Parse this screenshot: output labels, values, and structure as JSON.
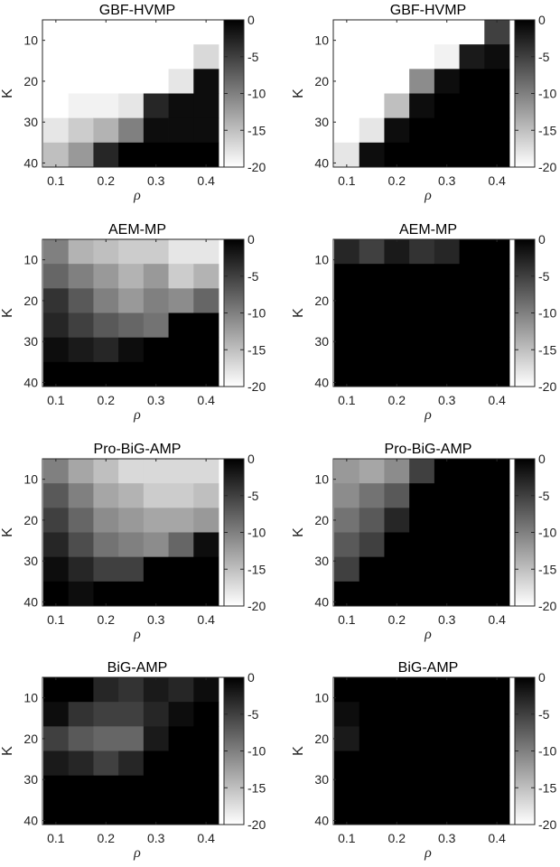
{
  "chart_data": [
    {
      "type": "heatmap",
      "title": "GBF-HVMP",
      "xlabel": "ρ",
      "ylabel": "K",
      "x": [
        0.1,
        0.15,
        0.2,
        0.25,
        0.3,
        0.35,
        0.4
      ],
      "y": [
        8,
        14,
        20,
        26,
        32,
        38
      ],
      "xticks": [
        "0.1",
        "0.2",
        "0.3",
        "0.4"
      ],
      "yticks": [
        "10",
        "20",
        "30",
        "40"
      ],
      "colorbar": {
        "ticks": [
          "0",
          "-5",
          "-10",
          "-15",
          "-20"
        ],
        "range": [
          -20,
          0
        ]
      },
      "z": [
        [
          -20,
          -20,
          -20,
          -20,
          -20,
          -20,
          -20
        ],
        [
          -20,
          -20,
          -20,
          -20,
          -20,
          -20,
          -17
        ],
        [
          -20,
          -20,
          -20,
          -20,
          -20,
          -18,
          -1
        ],
        [
          -20,
          -19,
          -19,
          -18,
          -3,
          -1,
          -1
        ],
        [
          -18,
          -16,
          -14,
          -10,
          -1,
          -1,
          -1
        ],
        [
          -15,
          -12,
          -3,
          0,
          0,
          0,
          0
        ]
      ]
    },
    {
      "type": "heatmap",
      "title": "GBF-HVMP",
      "xlabel": "ρ",
      "ylabel": "K",
      "x": [
        0.1,
        0.15,
        0.2,
        0.25,
        0.3,
        0.35,
        0.4
      ],
      "y": [
        8,
        14,
        20,
        26,
        32,
        38
      ],
      "xticks": [
        "0.1",
        "0.2",
        "0.3",
        "0.4"
      ],
      "yticks": [
        "10",
        "20",
        "30",
        "40"
      ],
      "colorbar": {
        "ticks": [
          "0",
          "-5",
          "-10",
          "-15",
          "-20"
        ],
        "range": [
          -20,
          0
        ]
      },
      "z": [
        [
          -20,
          -20,
          -20,
          -20,
          -20,
          -20,
          -5
        ],
        [
          -20,
          -20,
          -20,
          -20,
          -19,
          -2,
          -1
        ],
        [
          -20,
          -20,
          -20,
          -11,
          -1,
          0,
          0
        ],
        [
          -20,
          -20,
          -15,
          -1,
          0,
          0,
          0
        ],
        [
          -20,
          -18,
          -1,
          0,
          0,
          0,
          0
        ],
        [
          -18,
          -1,
          0,
          0,
          0,
          0,
          0
        ]
      ]
    },
    {
      "type": "heatmap",
      "title": "AEM-MP",
      "xlabel": "ρ",
      "ylabel": "K",
      "x": [
        0.1,
        0.15,
        0.2,
        0.25,
        0.3,
        0.35,
        0.4
      ],
      "y": [
        8,
        14,
        20,
        26,
        32,
        38
      ],
      "xticks": [
        "0.1",
        "0.2",
        "0.3",
        "0.4"
      ],
      "yticks": [
        "10",
        "20",
        "30",
        "40"
      ],
      "colorbar": {
        "ticks": [
          "0",
          "-5",
          "-10",
          "-15",
          "-20"
        ],
        "range": [
          -20,
          0
        ]
      },
      "z": [
        [
          -10,
          -14,
          -15,
          -16,
          -16,
          -18,
          -18
        ],
        [
          -8,
          -10,
          -12,
          -14,
          -12,
          -16,
          -14
        ],
        [
          -4,
          -7,
          -10,
          -12,
          -10,
          -11,
          -8
        ],
        [
          -3,
          -5,
          -7,
          -8,
          -9,
          0,
          0
        ],
        [
          -1,
          -2,
          -3,
          -1,
          0,
          0,
          0
        ],
        [
          0,
          0,
          0,
          0,
          0,
          0,
          0
        ]
      ]
    },
    {
      "type": "heatmap",
      "title": "AEM-MP",
      "xlabel": "ρ",
      "ylabel": "K",
      "x": [
        0.1,
        0.15,
        0.2,
        0.25,
        0.3,
        0.35,
        0.4
      ],
      "y": [
        8,
        14,
        20,
        26,
        32,
        38
      ],
      "xticks": [
        "0.1",
        "0.2",
        "0.3",
        "0.4"
      ],
      "yticks": [
        "10",
        "20",
        "30",
        "40"
      ],
      "colorbar": {
        "ticks": [
          "0",
          "-5",
          "-10",
          "-15",
          "-20"
        ],
        "range": [
          -20,
          0
        ]
      },
      "z": [
        [
          -3,
          -5,
          -2,
          -4,
          -3,
          0,
          0
        ],
        [
          0,
          0,
          0,
          0,
          0,
          0,
          0
        ],
        [
          0,
          0,
          0,
          0,
          0,
          0,
          0
        ],
        [
          0,
          0,
          0,
          0,
          0,
          0,
          0
        ],
        [
          0,
          0,
          0,
          0,
          0,
          0,
          0
        ],
        [
          0,
          0,
          0,
          0,
          0,
          0,
          0
        ]
      ]
    },
    {
      "type": "heatmap",
      "title": "Pro-BiG-AMP",
      "xlabel": "ρ",
      "ylabel": "K",
      "x": [
        0.1,
        0.15,
        0.2,
        0.25,
        0.3,
        0.35,
        0.4
      ],
      "y": [
        8,
        14,
        20,
        26,
        32,
        38
      ],
      "xticks": [
        "0.1",
        "0.2",
        "0.3",
        "0.4"
      ],
      "yticks": [
        "10",
        "20",
        "30",
        "40"
      ],
      "colorbar": {
        "ticks": [
          "0",
          "-5",
          "-10",
          "-15",
          "-20"
        ],
        "range": [
          -20,
          0
        ]
      },
      "z": [
        [
          -10,
          -13,
          -15,
          -17,
          -17,
          -17,
          -17
        ],
        [
          -7,
          -10,
          -13,
          -14,
          -16,
          -16,
          -15
        ],
        [
          -5,
          -8,
          -11,
          -12,
          -13,
          -13,
          -12
        ],
        [
          -3,
          -6,
          -9,
          -10,
          -11,
          -8,
          -1
        ],
        [
          -1,
          -3,
          -5,
          -5,
          0,
          0,
          0
        ],
        [
          0,
          -1,
          0,
          0,
          0,
          0,
          0
        ]
      ]
    },
    {
      "type": "heatmap",
      "title": "Pro-BiG-AMP",
      "xlabel": "ρ",
      "ylabel": "K",
      "x": [
        0.1,
        0.15,
        0.2,
        0.25,
        0.3,
        0.35,
        0.4
      ],
      "y": [
        8,
        14,
        20,
        26,
        32,
        38
      ],
      "xticks": [
        "0.1",
        "0.2",
        "0.3",
        "0.4"
      ],
      "yticks": [
        "10",
        "20",
        "30",
        "40"
      ],
      "colorbar": {
        "ticks": [
          "0",
          "-5",
          "-10",
          "-15",
          "-20"
        ],
        "range": [
          -20,
          0
        ]
      },
      "z": [
        [
          -12,
          -13,
          -11,
          -5,
          0,
          0,
          0
        ],
        [
          -11,
          -9,
          -7,
          0,
          0,
          0,
          0
        ],
        [
          -9,
          -7,
          -3,
          0,
          0,
          0,
          0
        ],
        [
          -7,
          -5,
          0,
          0,
          0,
          0,
          0
        ],
        [
          -5,
          0,
          0,
          0,
          0,
          0,
          0
        ],
        [
          0,
          0,
          0,
          0,
          0,
          0,
          0
        ]
      ]
    },
    {
      "type": "heatmap",
      "title": "BiG-AMP",
      "xlabel": "ρ",
      "ylabel": "K",
      "x": [
        0.1,
        0.15,
        0.2,
        0.25,
        0.3,
        0.35,
        0.4
      ],
      "y": [
        8,
        14,
        20,
        26,
        32,
        38
      ],
      "xticks": [
        "0.1",
        "0.2",
        "0.3",
        "0.4"
      ],
      "yticks": [
        "10",
        "20",
        "30",
        "40"
      ],
      "colorbar": {
        "ticks": [
          "0",
          "-5",
          "-10",
          "-15",
          "-20"
        ],
        "range": [
          -20,
          0
        ]
      },
      "z": [
        [
          0,
          0,
          -3,
          -4,
          -2,
          -3,
          -1
        ],
        [
          -1,
          -4,
          -5,
          -5,
          -3,
          -1,
          0
        ],
        [
          -5,
          -7,
          -8,
          -8,
          -2,
          0,
          0
        ],
        [
          -2,
          -3,
          -5,
          -3,
          0,
          0,
          0
        ],
        [
          0,
          0,
          0,
          0,
          0,
          0,
          0
        ],
        [
          0,
          0,
          0,
          0,
          0,
          0,
          0
        ]
      ]
    },
    {
      "type": "heatmap",
      "title": "BiG-AMP",
      "xlabel": "ρ",
      "ylabel": "K",
      "x": [
        0.1,
        0.15,
        0.2,
        0.25,
        0.3,
        0.35,
        0.4
      ],
      "y": [
        8,
        14,
        20,
        26,
        32,
        38
      ],
      "xticks": [
        "0.1",
        "0.2",
        "0.3",
        "0.4"
      ],
      "yticks": [
        "10",
        "20",
        "30",
        "40"
      ],
      "colorbar": {
        "ticks": [
          "0",
          "-5",
          "-10",
          "-15",
          "-20"
        ],
        "range": [
          -20,
          0
        ]
      },
      "z": [
        [
          0,
          0,
          0,
          0,
          0,
          0,
          0
        ],
        [
          -1,
          0,
          0,
          0,
          0,
          0,
          0
        ],
        [
          -2,
          0,
          0,
          0,
          0,
          0,
          0
        ],
        [
          0,
          0,
          0,
          0,
          0,
          0,
          0
        ],
        [
          0,
          0,
          0,
          0,
          0,
          0,
          0
        ],
        [
          0,
          0,
          0,
          0,
          0,
          0,
          0
        ]
      ]
    }
  ]
}
